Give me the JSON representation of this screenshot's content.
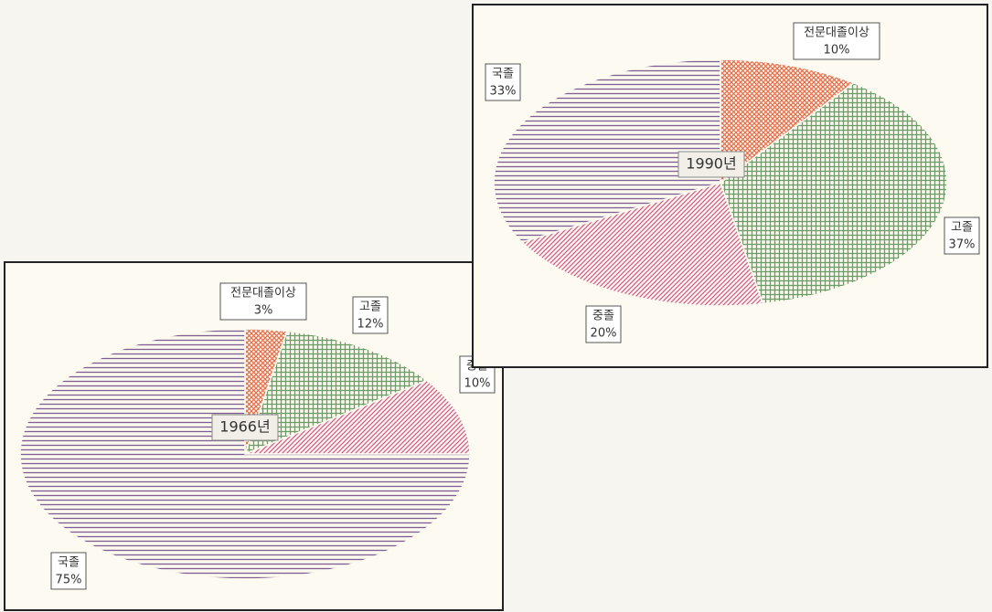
{
  "chart_data": [
    {
      "type": "pie",
      "title": "1966년",
      "categories": [
        "전문대졸이상",
        "고졸",
        "중졸",
        "국졸"
      ],
      "values": [
        3,
        12,
        10,
        75
      ],
      "value_labels": [
        "3%",
        "12%",
        "10%",
        "75%"
      ],
      "colors": [
        "#e8704f",
        "#6f9a6a",
        "#d65b8e",
        "#7e5f95"
      ],
      "patterns": [
        "crosshatch",
        "grid",
        "diagonal",
        "horizontal"
      ]
    },
    {
      "type": "pie",
      "title": "1990년",
      "categories": [
        "전문대졸이상",
        "고졸",
        "중졸",
        "국졸"
      ],
      "values": [
        10,
        37,
        20,
        33
      ],
      "value_labels": [
        "10%",
        "37%",
        "20%",
        "33%"
      ],
      "colors": [
        "#e8704f",
        "#6f9a6a",
        "#d65b8e",
        "#7e5f95"
      ],
      "patterns": [
        "crosshatch",
        "grid",
        "diagonal",
        "horizontal"
      ]
    }
  ]
}
